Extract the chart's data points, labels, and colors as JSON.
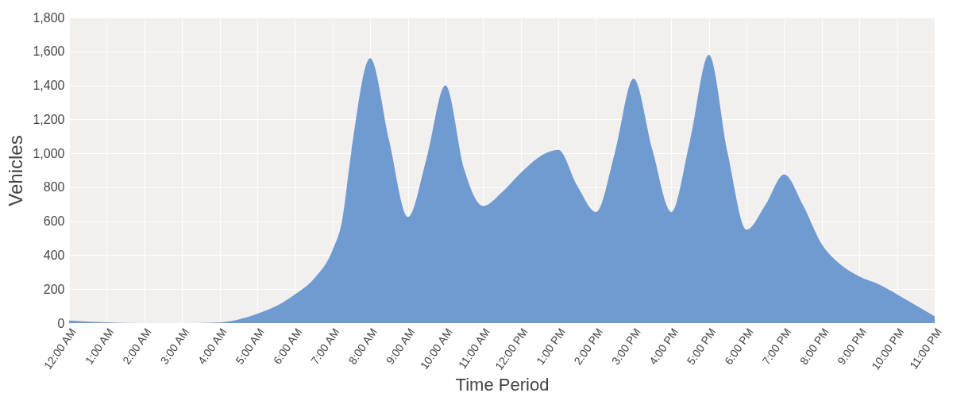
{
  "chart_data": {
    "type": "area",
    "xlabel": "Time Period",
    "ylabel": "Vehicles",
    "color": "#6f9bd1",
    "grid": true,
    "x": [
      0,
      1,
      2,
      3,
      4,
      5,
      5.5,
      6,
      6.5,
      7,
      7.25,
      7.5,
      8,
      8.5,
      9,
      9.5,
      10,
      10.5,
      11,
      11.5,
      12,
      12.5,
      13,
      13.5,
      14,
      14.5,
      15,
      15.5,
      16,
      16.5,
      17,
      17.5,
      18,
      18.5,
      19,
      19.5,
      20,
      20.5,
      21,
      21.5,
      22,
      22.5,
      23
    ],
    "values": [
      15,
      5,
      0,
      0,
      5,
      55,
      100,
      170,
      260,
      430,
      600,
      1010,
      1560,
      1080,
      625,
      970,
      1400,
      905,
      690,
      770,
      885,
      980,
      1020,
      810,
      655,
      1000,
      1440,
      1020,
      655,
      1075,
      1580,
      1000,
      550,
      695,
      875,
      695,
      465,
      345,
      275,
      230,
      170,
      105,
      40
    ],
    "xlim": [
      0,
      23
    ],
    "xticks": [
      {
        "value": 0,
        "label": "12:00 AM"
      },
      {
        "value": 1,
        "label": "1:00 AM"
      },
      {
        "value": 2,
        "label": "2:00 AM"
      },
      {
        "value": 3,
        "label": "3:00 AM"
      },
      {
        "value": 4,
        "label": "4:00 AM"
      },
      {
        "value": 5,
        "label": "5:00 AM"
      },
      {
        "value": 6,
        "label": "6:00 AM"
      },
      {
        "value": 7,
        "label": "7:00 AM"
      },
      {
        "value": 8,
        "label": "8:00 AM"
      },
      {
        "value": 9,
        "label": "9:00 AM"
      },
      {
        "value": 10,
        "label": "10:00 AM"
      },
      {
        "value": 11,
        "label": "11:00 AM"
      },
      {
        "value": 12,
        "label": "12:00 PM"
      },
      {
        "value": 13,
        "label": "1:00 PM"
      },
      {
        "value": 14,
        "label": "2:00 PM"
      },
      {
        "value": 15,
        "label": "3:00 PM"
      },
      {
        "value": 16,
        "label": "4:00 PM"
      },
      {
        "value": 17,
        "label": "5:00 PM"
      },
      {
        "value": 18,
        "label": "6:00 PM"
      },
      {
        "value": 19,
        "label": "7:00 PM"
      },
      {
        "value": 20,
        "label": "8:00 PM"
      },
      {
        "value": 21,
        "label": "9:00 PM"
      },
      {
        "value": 22,
        "label": "10:00 PM"
      },
      {
        "value": 23,
        "label": "11:00 PM"
      }
    ],
    "ylim": [
      0,
      1800
    ],
    "yticks": [
      {
        "value": 0,
        "label": "0"
      },
      {
        "value": 200,
        "label": "200"
      },
      {
        "value": 400,
        "label": "400"
      },
      {
        "value": 600,
        "label": "600"
      },
      {
        "value": 800,
        "label": "800"
      },
      {
        "value": 1000,
        "label": "1,000"
      },
      {
        "value": 1200,
        "label": "1,200"
      },
      {
        "value": 1400,
        "label": "1,400"
      },
      {
        "value": 1600,
        "label": "1,600"
      },
      {
        "value": 1800,
        "label": "1,800"
      }
    ]
  }
}
